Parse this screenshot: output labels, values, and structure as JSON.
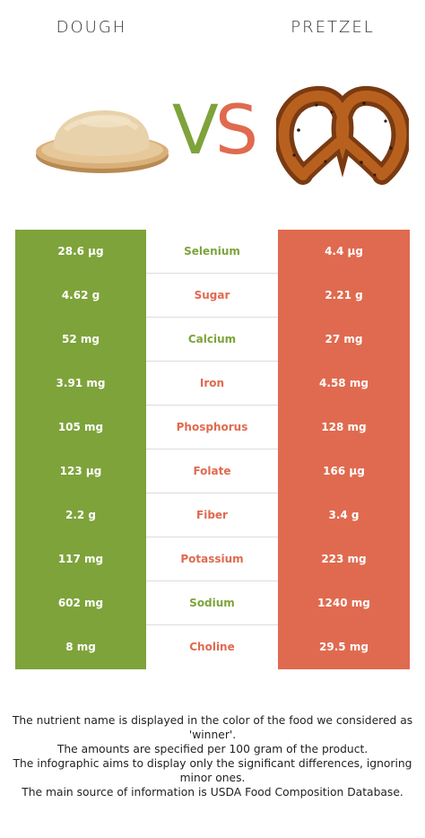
{
  "header": {
    "left_food": "DOUGH",
    "right_food": "PRETZEL",
    "vs_v": "V",
    "vs_s": "S"
  },
  "colors": {
    "left": "#7ea33a",
    "right": "#e06a4f"
  },
  "rows": [
    {
      "nutrient": "Selenium",
      "left": "28.6 µg",
      "right": "4.4 µg",
      "winner": "left"
    },
    {
      "nutrient": "Sugar",
      "left": "4.62 g",
      "right": "2.21 g",
      "winner": "right"
    },
    {
      "nutrient": "Calcium",
      "left": "52 mg",
      "right": "27 mg",
      "winner": "left"
    },
    {
      "nutrient": "Iron",
      "left": "3.91 mg",
      "right": "4.58 mg",
      "winner": "right"
    },
    {
      "nutrient": "Phosphorus",
      "left": "105 mg",
      "right": "128 mg",
      "winner": "right"
    },
    {
      "nutrient": "Folate",
      "left": "123 µg",
      "right": "166 µg",
      "winner": "right"
    },
    {
      "nutrient": "Fiber",
      "left": "2.2 g",
      "right": "3.4 g",
      "winner": "right"
    },
    {
      "nutrient": "Potassium",
      "left": "117 mg",
      "right": "223 mg",
      "winner": "right"
    },
    {
      "nutrient": "Sodium",
      "left": "602 mg",
      "right": "1240 mg",
      "winner": "left"
    },
    {
      "nutrient": "Choline",
      "left": "8 mg",
      "right": "29.5 mg",
      "winner": "right"
    }
  ],
  "footnote": [
    "The nutrient name is displayed in the color of the food we considered as 'winner'.",
    "The amounts are specified per 100 gram of the product.",
    "The infographic aims to display only the significant differences, ignoring minor ones.",
    "The main source of information is USDA Food Composition Database."
  ]
}
